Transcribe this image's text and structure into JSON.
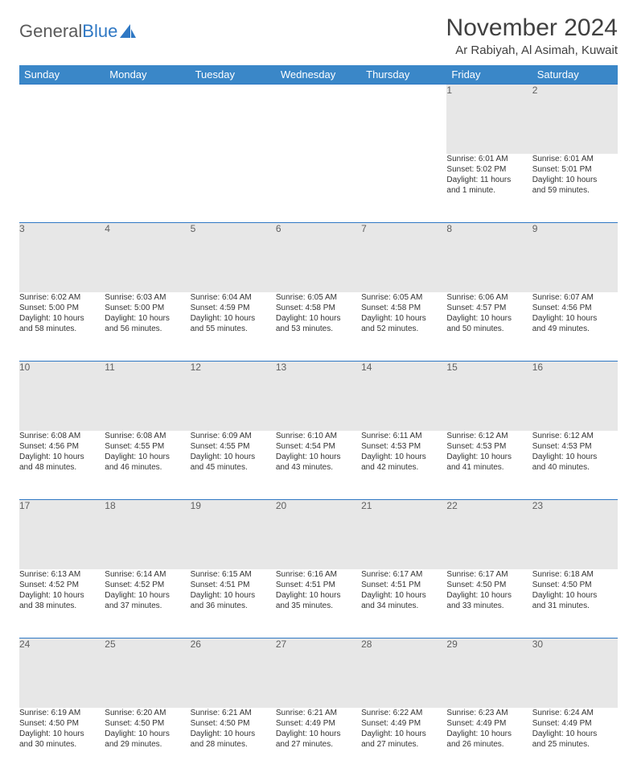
{
  "logo": {
    "text_gray": "General",
    "text_blue": "Blue"
  },
  "title": "November 2024",
  "location": "Ar Rabiyah, Al Asimah, Kuwait",
  "colors": {
    "header_bg": "#3a87c8",
    "daynum_bg": "#e7e7e7",
    "rule": "#2f78c4",
    "text": "#333333"
  },
  "weekdays": [
    "Sunday",
    "Monday",
    "Tuesday",
    "Wednesday",
    "Thursday",
    "Friday",
    "Saturday"
  ],
  "weeks": [
    [
      {
        "n": "",
        "empty": true
      },
      {
        "n": "",
        "empty": true
      },
      {
        "n": "",
        "empty": true
      },
      {
        "n": "",
        "empty": true
      },
      {
        "n": "",
        "empty": true
      },
      {
        "n": "1",
        "sr": "Sunrise: 6:01 AM",
        "ss": "Sunset: 5:02 PM",
        "d1": "Daylight: 11 hours",
        "d2": "and 1 minute."
      },
      {
        "n": "2",
        "sr": "Sunrise: 6:01 AM",
        "ss": "Sunset: 5:01 PM",
        "d1": "Daylight: 10 hours",
        "d2": "and 59 minutes."
      }
    ],
    [
      {
        "n": "3",
        "sr": "Sunrise: 6:02 AM",
        "ss": "Sunset: 5:00 PM",
        "d1": "Daylight: 10 hours",
        "d2": "and 58 minutes."
      },
      {
        "n": "4",
        "sr": "Sunrise: 6:03 AM",
        "ss": "Sunset: 5:00 PM",
        "d1": "Daylight: 10 hours",
        "d2": "and 56 minutes."
      },
      {
        "n": "5",
        "sr": "Sunrise: 6:04 AM",
        "ss": "Sunset: 4:59 PM",
        "d1": "Daylight: 10 hours",
        "d2": "and 55 minutes."
      },
      {
        "n": "6",
        "sr": "Sunrise: 6:05 AM",
        "ss": "Sunset: 4:58 PM",
        "d1": "Daylight: 10 hours",
        "d2": "and 53 minutes."
      },
      {
        "n": "7",
        "sr": "Sunrise: 6:05 AM",
        "ss": "Sunset: 4:58 PM",
        "d1": "Daylight: 10 hours",
        "d2": "and 52 minutes."
      },
      {
        "n": "8",
        "sr": "Sunrise: 6:06 AM",
        "ss": "Sunset: 4:57 PM",
        "d1": "Daylight: 10 hours",
        "d2": "and 50 minutes."
      },
      {
        "n": "9",
        "sr": "Sunrise: 6:07 AM",
        "ss": "Sunset: 4:56 PM",
        "d1": "Daylight: 10 hours",
        "d2": "and 49 minutes."
      }
    ],
    [
      {
        "n": "10",
        "sr": "Sunrise: 6:08 AM",
        "ss": "Sunset: 4:56 PM",
        "d1": "Daylight: 10 hours",
        "d2": "and 48 minutes."
      },
      {
        "n": "11",
        "sr": "Sunrise: 6:08 AM",
        "ss": "Sunset: 4:55 PM",
        "d1": "Daylight: 10 hours",
        "d2": "and 46 minutes."
      },
      {
        "n": "12",
        "sr": "Sunrise: 6:09 AM",
        "ss": "Sunset: 4:55 PM",
        "d1": "Daylight: 10 hours",
        "d2": "and 45 minutes."
      },
      {
        "n": "13",
        "sr": "Sunrise: 6:10 AM",
        "ss": "Sunset: 4:54 PM",
        "d1": "Daylight: 10 hours",
        "d2": "and 43 minutes."
      },
      {
        "n": "14",
        "sr": "Sunrise: 6:11 AM",
        "ss": "Sunset: 4:53 PM",
        "d1": "Daylight: 10 hours",
        "d2": "and 42 minutes."
      },
      {
        "n": "15",
        "sr": "Sunrise: 6:12 AM",
        "ss": "Sunset: 4:53 PM",
        "d1": "Daylight: 10 hours",
        "d2": "and 41 minutes."
      },
      {
        "n": "16",
        "sr": "Sunrise: 6:12 AM",
        "ss": "Sunset: 4:53 PM",
        "d1": "Daylight: 10 hours",
        "d2": "and 40 minutes."
      }
    ],
    [
      {
        "n": "17",
        "sr": "Sunrise: 6:13 AM",
        "ss": "Sunset: 4:52 PM",
        "d1": "Daylight: 10 hours",
        "d2": "and 38 minutes."
      },
      {
        "n": "18",
        "sr": "Sunrise: 6:14 AM",
        "ss": "Sunset: 4:52 PM",
        "d1": "Daylight: 10 hours",
        "d2": "and 37 minutes."
      },
      {
        "n": "19",
        "sr": "Sunrise: 6:15 AM",
        "ss": "Sunset: 4:51 PM",
        "d1": "Daylight: 10 hours",
        "d2": "and 36 minutes."
      },
      {
        "n": "20",
        "sr": "Sunrise: 6:16 AM",
        "ss": "Sunset: 4:51 PM",
        "d1": "Daylight: 10 hours",
        "d2": "and 35 minutes."
      },
      {
        "n": "21",
        "sr": "Sunrise: 6:17 AM",
        "ss": "Sunset: 4:51 PM",
        "d1": "Daylight: 10 hours",
        "d2": "and 34 minutes."
      },
      {
        "n": "22",
        "sr": "Sunrise: 6:17 AM",
        "ss": "Sunset: 4:50 PM",
        "d1": "Daylight: 10 hours",
        "d2": "and 33 minutes."
      },
      {
        "n": "23",
        "sr": "Sunrise: 6:18 AM",
        "ss": "Sunset: 4:50 PM",
        "d1": "Daylight: 10 hours",
        "d2": "and 31 minutes."
      }
    ],
    [
      {
        "n": "24",
        "sr": "Sunrise: 6:19 AM",
        "ss": "Sunset: 4:50 PM",
        "d1": "Daylight: 10 hours",
        "d2": "and 30 minutes."
      },
      {
        "n": "25",
        "sr": "Sunrise: 6:20 AM",
        "ss": "Sunset: 4:50 PM",
        "d1": "Daylight: 10 hours",
        "d2": "and 29 minutes."
      },
      {
        "n": "26",
        "sr": "Sunrise: 6:21 AM",
        "ss": "Sunset: 4:50 PM",
        "d1": "Daylight: 10 hours",
        "d2": "and 28 minutes."
      },
      {
        "n": "27",
        "sr": "Sunrise: 6:21 AM",
        "ss": "Sunset: 4:49 PM",
        "d1": "Daylight: 10 hours",
        "d2": "and 27 minutes."
      },
      {
        "n": "28",
        "sr": "Sunrise: 6:22 AM",
        "ss": "Sunset: 4:49 PM",
        "d1": "Daylight: 10 hours",
        "d2": "and 27 minutes."
      },
      {
        "n": "29",
        "sr": "Sunrise: 6:23 AM",
        "ss": "Sunset: 4:49 PM",
        "d1": "Daylight: 10 hours",
        "d2": "and 26 minutes."
      },
      {
        "n": "30",
        "sr": "Sunrise: 6:24 AM",
        "ss": "Sunset: 4:49 PM",
        "d1": "Daylight: 10 hours",
        "d2": "and 25 minutes."
      }
    ]
  ]
}
